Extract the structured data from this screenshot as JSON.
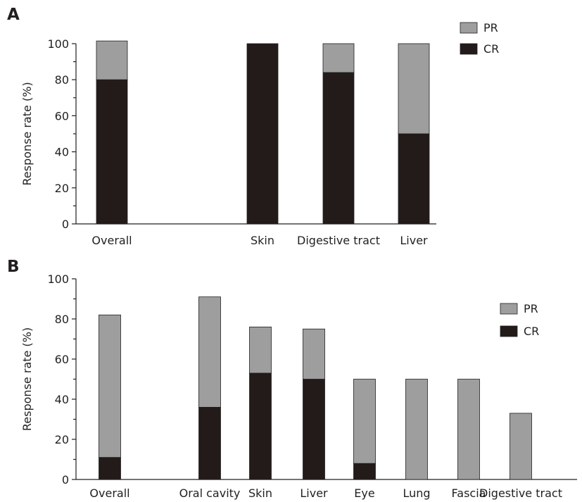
{
  "colors": {
    "cr": "#231a1a",
    "pr": "#9e9e9e",
    "axis": "#231f20"
  },
  "chart_data": [
    {
      "type": "bar",
      "stacked": true,
      "panel_label": "A",
      "categories": [
        "Overall",
        "Skin",
        "Digestive tract",
        "Liver"
      ],
      "series": [
        {
          "name": "CR",
          "values": [
            80,
            100,
            84,
            50
          ]
        },
        {
          "name": "PR",
          "values": [
            21.5,
            0,
            16,
            50
          ]
        }
      ],
      "ylabel": "Response rate (%)",
      "ylim": [
        0,
        100
      ],
      "yticks": [
        "0",
        "20",
        "40",
        "60",
        "80",
        "100"
      ],
      "legend": [
        "PR",
        "CR"
      ],
      "legend_position": "top-right",
      "grid": false
    },
    {
      "type": "bar",
      "stacked": true,
      "panel_label": "B",
      "categories": [
        "Overall",
        "Oral cavity",
        "Skin",
        "Liver",
        "Eye",
        "Lung",
        "Fascia",
        "Digestive tract"
      ],
      "series": [
        {
          "name": "CR",
          "values": [
            11,
            36,
            53,
            50,
            8,
            0,
            0,
            0
          ]
        },
        {
          "name": "PR",
          "values": [
            71,
            55,
            23,
            25,
            42,
            50,
            50,
            33
          ]
        }
      ],
      "ylabel": "Response rate (%)",
      "ylim": [
        0,
        100
      ],
      "yticks": [
        "0",
        "20",
        "40",
        "60",
        "80",
        "100"
      ],
      "legend": [
        "PR",
        "CR"
      ],
      "legend_position": "top-right",
      "grid": false
    }
  ]
}
